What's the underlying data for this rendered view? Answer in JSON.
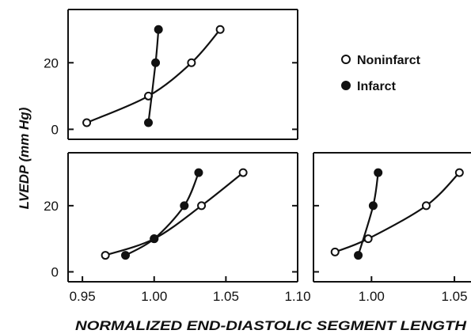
{
  "chart_data": {
    "type": "scatter",
    "ylabel": "LVEDP (mm Hg)",
    "xlabel": "NORMALIZED END-DIASTOLIC SEGMENT LENGTH",
    "legend": {
      "placement": "top-right",
      "entries": [
        {
          "name": "Noninfarct",
          "marker": "open-circle"
        },
        {
          "name": "Infarct",
          "marker": "filled-circle"
        }
      ]
    },
    "x_tick_labels": [
      "0.95",
      "1.00",
      "1.05",
      "1.10"
    ],
    "panels": [
      {
        "position": "top-left",
        "xlim": [
          0.94,
          1.1
        ],
        "ylim": [
          -3,
          36
        ],
        "y_ticks": [
          0,
          20
        ],
        "y_tick_labels": [
          "0",
          "20"
        ],
        "x_tick_labels_shown": false,
        "series": [
          {
            "name": "Noninfarct",
            "x": [
              0.953,
              0.996,
              1.026,
              1.046
            ],
            "y": [
              2,
              10,
              20,
              30
            ]
          },
          {
            "name": "Infarct",
            "x": [
              0.996,
              1.001,
              1.003
            ],
            "y": [
              2,
              20,
              30
            ]
          }
        ]
      },
      {
        "position": "bottom-left",
        "xlim": [
          0.94,
          1.1
        ],
        "ylim": [
          -3,
          36
        ],
        "y_ticks": [
          0,
          20
        ],
        "y_tick_labels": [
          "0",
          "20"
        ],
        "x_ticks": [
          0.95,
          1.0,
          1.05,
          1.1
        ],
        "x_tick_labels_shown": true,
        "series": [
          {
            "name": "Noninfarct",
            "x": [
              0.966,
              1.0,
              1.033,
              1.062
            ],
            "y": [
              5,
              10,
              20,
              30
            ]
          },
          {
            "name": "Infarct",
            "x": [
              0.98,
              1.0,
              1.021,
              1.031
            ],
            "y": [
              5,
              10,
              20,
              30
            ]
          }
        ]
      },
      {
        "position": "bottom-right",
        "xlim": [
          0.965,
          1.06
        ],
        "ylim": [
          -3,
          36
        ],
        "y_ticks": [
          0,
          20
        ],
        "y_tick_labels": [],
        "x_ticks": [
          1.0,
          1.05
        ],
        "x_tick_labels_shown": true,
        "series": [
          {
            "name": "Noninfarct",
            "x": [
              0.978,
              0.998,
              1.033,
              1.053
            ],
            "y": [
              6,
              10,
              20,
              30
            ]
          },
          {
            "name": "Infarct",
            "x": [
              0.992,
              1.001,
              1.004
            ],
            "y": [
              5,
              20,
              30
            ]
          }
        ]
      }
    ]
  }
}
